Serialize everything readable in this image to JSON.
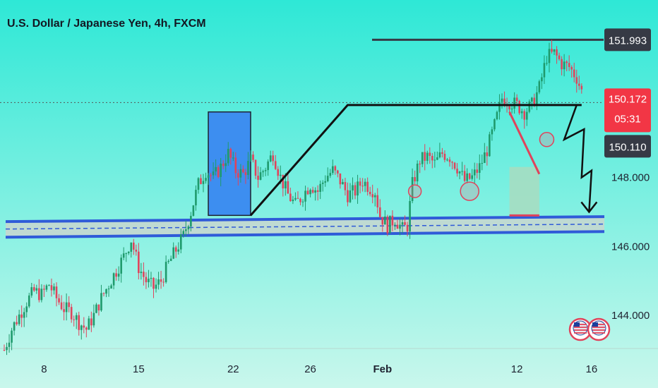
{
  "chart_data": {
    "type": "candlestick",
    "title": "U.S. Dollar / Japanese Yen, 4h, FXCM",
    "colors": {
      "background_top": "#2ee8d6",
      "background_bottom": "#c9f7ec",
      "up": "#1f9a6c",
      "down": "#e0435b",
      "support_zone": "#2f5bd8",
      "annotation_box": "#3d8ef0",
      "current_price": "#f23645",
      "label_dark": "#363a45"
    },
    "y_axis": {
      "ticks": [
        "148.000",
        "146.000",
        "144.000"
      ],
      "tick_values": [
        148,
        146,
        144
      ],
      "range": [
        142.8,
        153.0
      ]
    },
    "x_axis": {
      "ticks": [
        "8",
        "15",
        "22",
        "26",
        "Feb",
        "12",
        "16"
      ]
    },
    "price_labels": {
      "resistance_high": "151.993",
      "current_price": "150.172",
      "countdown": "05:31",
      "level": "150.110"
    },
    "levels": {
      "resistance_high": 151.993,
      "current": 150.172,
      "dotted": 150.172,
      "level": 150.11
    },
    "support_zone": {
      "low": 146.35,
      "high": 146.7
    },
    "close_path": [
      [
        0,
        143.0
      ],
      [
        3,
        143.6
      ],
      [
        6,
        144.0
      ],
      [
        9,
        144.4
      ],
      [
        12,
        144.7
      ],
      [
        15,
        144.6
      ],
      [
        18,
        144.9
      ],
      [
        21,
        144.5
      ],
      [
        24,
        144.2
      ],
      [
        27,
        144.1
      ],
      [
        30,
        143.8
      ],
      [
        33,
        143.6
      ],
      [
        36,
        144.0
      ],
      [
        39,
        144.5
      ],
      [
        42,
        144.9
      ],
      [
        45,
        145.3
      ],
      [
        48,
        145.7
      ],
      [
        51,
        146.2
      ],
      [
        54,
        145.4
      ],
      [
        57,
        145.0
      ],
      [
        60,
        144.8
      ],
      [
        63,
        145.0
      ],
      [
        66,
        145.5
      ],
      [
        69,
        145.9
      ],
      [
        72,
        146.3
      ],
      [
        75,
        147.0
      ],
      [
        78,
        147.8
      ],
      [
        81,
        148.2
      ],
      [
        84,
        148.0
      ],
      [
        87,
        148.3
      ],
      [
        90,
        148.7
      ],
      [
        93,
        148.2
      ],
      [
        96,
        148.1
      ],
      [
        99,
        148.5
      ],
      [
        102,
        148.0
      ],
      [
        105,
        148.3
      ],
      [
        108,
        148.7
      ],
      [
        111,
        148.0
      ],
      [
        114,
        147.5
      ],
      [
        117,
        147.2
      ],
      [
        120,
        147.5
      ],
      [
        123,
        147.8
      ],
      [
        126,
        147.6
      ],
      [
        129,
        148.0
      ],
      [
        132,
        148.2
      ],
      [
        135,
        147.9
      ],
      [
        138,
        147.5
      ],
      [
        141,
        147.6
      ],
      [
        144,
        147.9
      ],
      [
        147,
        147.7
      ],
      [
        149,
        147.6
      ],
      [
        151,
        146.9
      ],
      [
        154,
        146.6
      ],
      [
        157,
        146.8
      ],
      [
        160,
        146.5
      ],
      [
        162,
        146.6
      ],
      [
        164,
        147.8
      ],
      [
        167,
        148.5
      ],
      [
        170,
        148.6
      ],
      [
        173,
        148.4
      ],
      [
        176,
        148.7
      ],
      [
        179,
        148.6
      ],
      [
        182,
        148.3
      ],
      [
        185,
        147.9
      ],
      [
        188,
        148.0
      ],
      [
        191,
        148.3
      ],
      [
        194,
        148.8
      ],
      [
        197,
        149.5
      ],
      [
        200,
        150.3
      ],
      [
        203,
        150.2
      ],
      [
        206,
        150.1
      ],
      [
        209,
        149.9
      ],
      [
        212,
        150.1
      ],
      [
        215,
        150.6
      ],
      [
        218,
        151.5
      ],
      [
        221,
        151.6
      ],
      [
        224,
        151.3
      ],
      [
        227,
        151.2
      ],
      [
        230,
        150.9
      ],
      [
        232,
        150.5
      ]
    ],
    "annotations": {
      "blue_box": {
        "x0": 82,
        "x1": 99,
        "top": 149.9,
        "bottom": 146.9
      },
      "black_line": {
        "x0": 99,
        "y0": 146.9,
        "x1": 138,
        "y1": 150.1
      },
      "black_line_flat_end": 232,
      "red_triangle": {
        "x0": 203,
        "y0": 149.9,
        "x1": 215,
        "y1": 148.1
      },
      "green_box": {
        "x0": 203,
        "x1": 215,
        "top": 148.1,
        "bottom": 146.9
      },
      "red_base": {
        "x0": 203,
        "x1": 215,
        "y": 146.9
      },
      "circles": [
        {
          "x": 165,
          "y": 147.6,
          "r": 9
        },
        {
          "x": 187,
          "y": 147.6,
          "r": 13
        },
        {
          "x": 218,
          "y": 149.1,
          "r": 10
        }
      ],
      "zigzag": [
        [
          230,
          150.1
        ],
        [
          225,
          149.1
        ],
        [
          233,
          149.4
        ],
        [
          232,
          148.0
        ],
        [
          236,
          148.2
        ],
        [
          235,
          147.0
        ]
      ]
    }
  }
}
